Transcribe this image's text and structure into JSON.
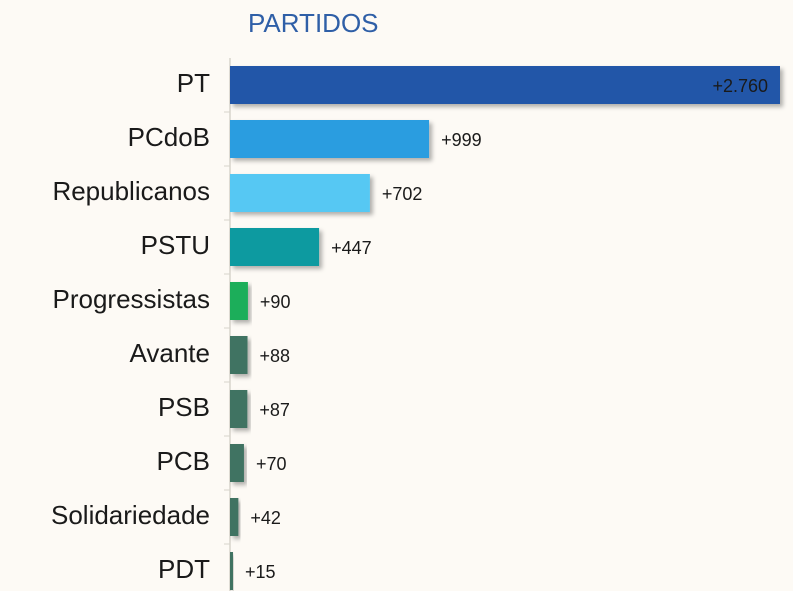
{
  "chart_data": {
    "type": "barh",
    "subtitle": "PARTIDOS",
    "categories": [
      "PT",
      "PCdoB",
      "Republicanos",
      "PSTU",
      "Progressistas",
      "Avante",
      "PSB",
      "PCB",
      "Solidariedade",
      "PDT"
    ],
    "values": [
      2760,
      999,
      702,
      447,
      90,
      88,
      87,
      70,
      42,
      15
    ],
    "value_labels": [
      "+2.760",
      "+999",
      "+702",
      "+447",
      "+90",
      "+88",
      "+87",
      "+70",
      "+42",
      "+15"
    ],
    "colors": [
      "#2356a8",
      "#2b9de0",
      "#56c8f3",
      "#0e9aa0",
      "#1fae5a",
      "#3f7362",
      "#3f7362",
      "#3f7362",
      "#3f7362",
      "#3f7362"
    ]
  }
}
